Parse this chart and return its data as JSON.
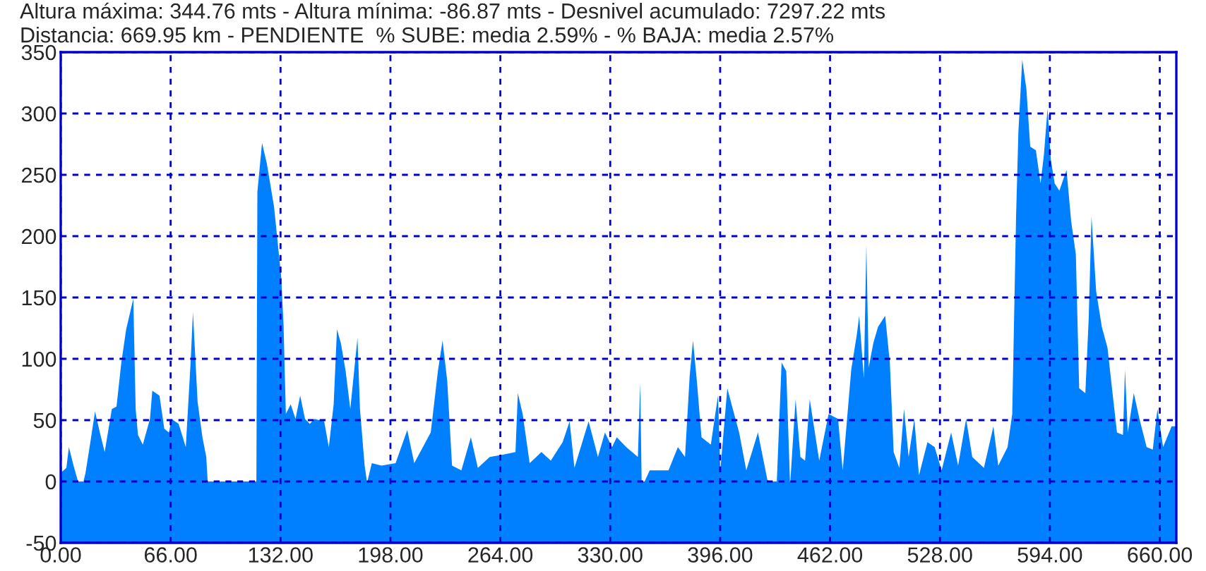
{
  "chart_data": {
    "type": "area",
    "annotations": [
      "Altura máxima: 344.76 mts - Altura mínima: -86.87 mts - Desnivel acumulado: 7297.22 mts",
      "Distancia: 669.95 km - PENDIENTE  % SUBE: media 2.59% - % BAJA: media 2.57%"
    ],
    "series": [
      {
        "color": "#0080ff",
        "x": [
          0,
          3.4,
          4.9,
          7.7,
          10.6,
          13.5,
          14.9,
          17.8,
          20.6,
          23.5,
          26.4,
          30.7,
          33.5,
          36.4,
          39.3,
          43.6,
          45.0,
          46.4,
          49.3,
          53.6,
          55.0,
          59.3,
          62.2,
          65.0,
          66.5,
          70.8,
          75.1,
          78.0,
          79.4,
          82.2,
          85.1,
          87.4,
          88.3,
          117.5,
          118.1,
          120.9,
          123.8,
          128.1,
          132.4,
          133.8,
          135.2,
          138.1,
          141.0,
          143.8,
          146.7,
          149.6,
          152.4,
          158.2,
          161.0,
          163.9,
          165.9,
          168.2,
          171.1,
          173.9,
          178.2,
          179.7,
          182.5,
          184.0,
          186.8,
          192.6,
          201.1,
          208.1,
          212.3,
          222.2,
          226.5,
          229.3,
          232.1,
          235.0,
          240.6,
          246.3,
          250.5,
          257.6,
          266.0,
          273.1,
          274.5,
          277.4,
          281.6,
          288.7,
          294.3,
          301.4,
          305.6,
          308.5,
          317.0,
          322.6,
          326.8,
          331.1,
          333.9,
          339.6,
          346.6,
          348.0,
          348.9,
          353.7,
          365.0,
          370.6,
          374.9,
          377.7,
          379.7,
          382.0,
          384.8,
          390.4,
          394.7,
          396.1,
          400.3,
          403.2,
          407.4,
          411.7,
          418.7,
          424.4,
          430.0,
          432.9,
          435.7,
          438.0,
          441.3,
          444.2,
          447.0,
          449.8,
          455.5,
          461.1,
          466.8,
          469.6,
          474.7,
          478.1,
          479.5,
          482.3,
          483.8,
          485.2,
          488.0,
          490.8,
          495.1,
          497.9,
          500.2,
          503.6,
          506.4,
          509.2,
          512.6,
          515.4,
          520.5,
          524.8,
          529.0,
          534.7,
          538.9,
          543.7,
          547.4,
          554.4,
          560.1,
          563.0,
          568.6,
          571.4,
          573.7,
          575.1,
          577.4,
          579.9,
          582.2,
          585.6,
          588.4,
          590.4,
          592.6,
          594.6,
          596.9,
          599.7,
          604.0,
          606.8,
          609.6,
          611.6,
          615.3,
          617.3,
          619.0,
          621.8,
          625.2,
          628.6,
          632.3,
          634.3,
          637.9,
          639.1,
          640.8,
          644.4,
          647.8,
          652.1,
          655.8,
          658.6,
          662.0,
          667.1,
          669.9
        ],
        "values": [
          7,
          11,
          28,
          13,
          -1,
          -1,
          7,
          32,
          57,
          40,
          24,
          59,
          61,
          97,
          124,
          149,
          59,
          38,
          30,
          51,
          74,
          70,
          43,
          40,
          51,
          47,
          28,
          97,
          138,
          65,
          36,
          20,
          -1,
          -1,
          236,
          276,
          259,
          224,
          167,
          128,
          55,
          63,
          51,
          70,
          51,
          47,
          51,
          49,
          28,
          63,
          124,
          113,
          90,
          59,
          117,
          59,
          13,
          -1,
          15,
          13,
          15,
          42,
          15,
          40,
          90,
          115,
          82,
          13,
          9,
          36,
          11,
          20,
          22,
          24,
          72,
          55,
          15,
          24,
          17,
          32,
          49,
          11,
          49,
          20,
          40,
          28,
          36,
          28,
          20,
          80,
          -5,
          9,
          9,
          28,
          20,
          86,
          115,
          82,
          36,
          30,
          70,
          9,
          76,
          61,
          40,
          9,
          40,
          1,
          -1,
          97,
          90,
          -3,
          67,
          20,
          17,
          67,
          17,
          55,
          51,
          9,
          91,
          120,
          135,
          84,
          193,
          93,
          113,
          126,
          135,
          97,
          24,
          11,
          59,
          20,
          51,
          5,
          32,
          28,
          9,
          40,
          13,
          51,
          20,
          11,
          45,
          13,
          28,
          55,
          216,
          285,
          344,
          320,
          273,
          270,
          243,
          266,
          304,
          262,
          243,
          237,
          254,
          212,
          185,
          76,
          72,
          132,
          216,
          155,
          126,
          109,
          64,
          40,
          38,
          91,
          40,
          72,
          51,
          28,
          26,
          59,
          28,
          45,
          45
        ]
      }
    ],
    "xlim": [
      0,
      669.95
    ],
    "ylim": [
      -50,
      350
    ],
    "xticks": [
      {
        "value": 0,
        "label": "0.00"
      },
      {
        "value": 66,
        "label": "66.00"
      },
      {
        "value": 132,
        "label": "132.00"
      },
      {
        "value": 198,
        "label": "198.00"
      },
      {
        "value": 264,
        "label": "264.00"
      },
      {
        "value": 330,
        "label": "330.00"
      },
      {
        "value": 396,
        "label": "396.00"
      },
      {
        "value": 462,
        "label": "462.00"
      },
      {
        "value": 528,
        "label": "528.00"
      },
      {
        "value": 594,
        "label": "594.00"
      },
      {
        "value": 660,
        "label": "660.00"
      }
    ],
    "yticks": [
      -50,
      0,
      50,
      100,
      150,
      200,
      250,
      300,
      350
    ],
    "bands": [
      {
        "axis": "y",
        "from": -50,
        "to": 0,
        "color": "#0080ff"
      }
    ],
    "grid": true
  }
}
